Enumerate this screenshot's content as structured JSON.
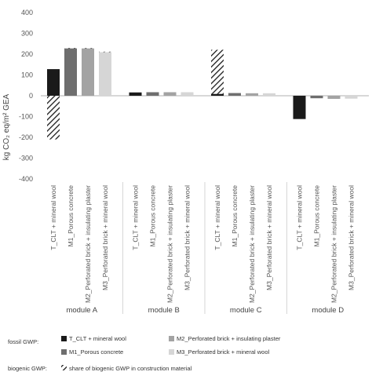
{
  "chart_data": {
    "type": "bar",
    "ylabel": "kg CO₂ eq/m² GEA",
    "ylim": [
      -400,
      400
    ],
    "yticks": [
      -400,
      -300,
      -200,
      -100,
      0,
      100,
      200,
      300,
      400
    ],
    "grid": false,
    "modules": [
      "module A",
      "module B",
      "module C",
      "module D"
    ],
    "categories": [
      "T_CLT + mineral wool",
      "M1_Porous concrete",
      "M2_Perforated brick + insulating plaster",
      "M3_Perforated brick + mineral wool"
    ],
    "colors": [
      "#1a1a1a",
      "#6e6e6e",
      "#a3a3a3",
      "#d6d6d6"
    ],
    "fossil_gwp": [
      [
        128,
        228,
        228,
        210
      ],
      [
        16,
        17,
        17,
        17
      ],
      [
        9,
        13,
        12,
        12
      ],
      [
        -112,
        -12,
        -15,
        -14
      ]
    ],
    "biogenic_gwp": [
      [
        -210,
        2,
        2,
        2
      ],
      [
        0,
        0,
        0,
        0
      ],
      [
        212,
        0,
        0,
        0
      ],
      [
        0,
        0,
        0,
        0
      ]
    ],
    "legend": {
      "fossil_label": "fossil GWP:",
      "biogenic_label": "biogenic GWP:",
      "biogenic_entry": "share of biogenic GWP in construction material",
      "placement": "bottom"
    }
  }
}
